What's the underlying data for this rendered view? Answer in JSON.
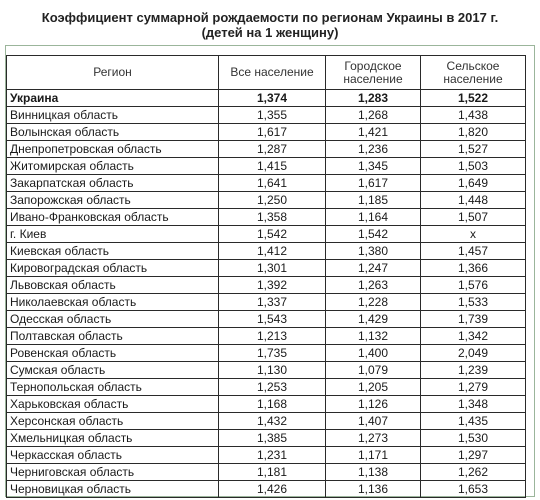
{
  "title": {
    "line1": "Коэффициент суммарной рождаемости по регионам Украины в 2017 г.",
    "line2": "(детей на 1 женщину)"
  },
  "columns": {
    "region": "Регион",
    "all": "Все население",
    "urban": "Городское население",
    "rural": "Сельское население"
  },
  "rows": [
    {
      "region": "Украина",
      "all": "1,374",
      "urban": "1,283",
      "rural": "1,522"
    },
    {
      "region": "Винницкая область",
      "all": "1,355",
      "urban": "1,268",
      "rural": "1,438"
    },
    {
      "region": "Волынская область",
      "all": "1,617",
      "urban": "1,421",
      "rural": "1,820"
    },
    {
      "region": "Днепропетровская область",
      "all": "1,287",
      "urban": "1,236",
      "rural": "1,527"
    },
    {
      "region": "Житомирская область",
      "all": "1,415",
      "urban": "1,345",
      "rural": "1,503"
    },
    {
      "region": "Закарпатская область",
      "all": "1,641",
      "urban": "1,617",
      "rural": "1,649"
    },
    {
      "region": "Запорожская область",
      "all": "1,250",
      "urban": "1,185",
      "rural": "1,448"
    },
    {
      "region": "Ивано-Франковская область",
      "all": "1,358",
      "urban": "1,164",
      "rural": "1,507"
    },
    {
      "region": "г. Киев",
      "all": "1,542",
      "urban": "1,542",
      "rural": "x"
    },
    {
      "region": "Киевская область",
      "all": "1,412",
      "urban": "1,380",
      "rural": "1,457"
    },
    {
      "region": "Кировоградская область",
      "all": "1,301",
      "urban": "1,247",
      "rural": "1,366"
    },
    {
      "region": "Львовская область",
      "all": "1,392",
      "urban": "1,263",
      "rural": "1,576"
    },
    {
      "region": "Николаевская область",
      "all": "1,337",
      "urban": "1,228",
      "rural": "1,533"
    },
    {
      "region": "Одесская область",
      "all": "1,543",
      "urban": "1,429",
      "rural": "1,739"
    },
    {
      "region": "Полтавская область",
      "all": "1,213",
      "urban": "1,132",
      "rural": "1,342"
    },
    {
      "region": "Ровенская область",
      "all": "1,735",
      "urban": "1,400",
      "rural": "2,049"
    },
    {
      "region": "Сумская область",
      "all": "1,130",
      "urban": "1,079",
      "rural": "1,239"
    },
    {
      "region": "Тернопольская область",
      "all": "1,253",
      "urban": "1,205",
      "rural": "1,279"
    },
    {
      "region": "Харьковская область",
      "all": "1,168",
      "urban": "1,126",
      "rural": "1,348"
    },
    {
      "region": "Херсонская область",
      "all": "1,432",
      "urban": "1,407",
      "rural": "1,435"
    },
    {
      "region": "Хмельницкая область",
      "all": "1,385",
      "urban": "1,273",
      "rural": "1,530"
    },
    {
      "region": "Черкасская область",
      "all": "1,231",
      "urban": "1,171",
      "rural": "1,297"
    },
    {
      "region": "Черниговская область",
      "all": "1,181",
      "urban": "1,138",
      "rural": "1,262"
    },
    {
      "region": "Черновицкая область",
      "all": "1,426",
      "urban": "1,136",
      "rural": "1,653"
    }
  ]
}
